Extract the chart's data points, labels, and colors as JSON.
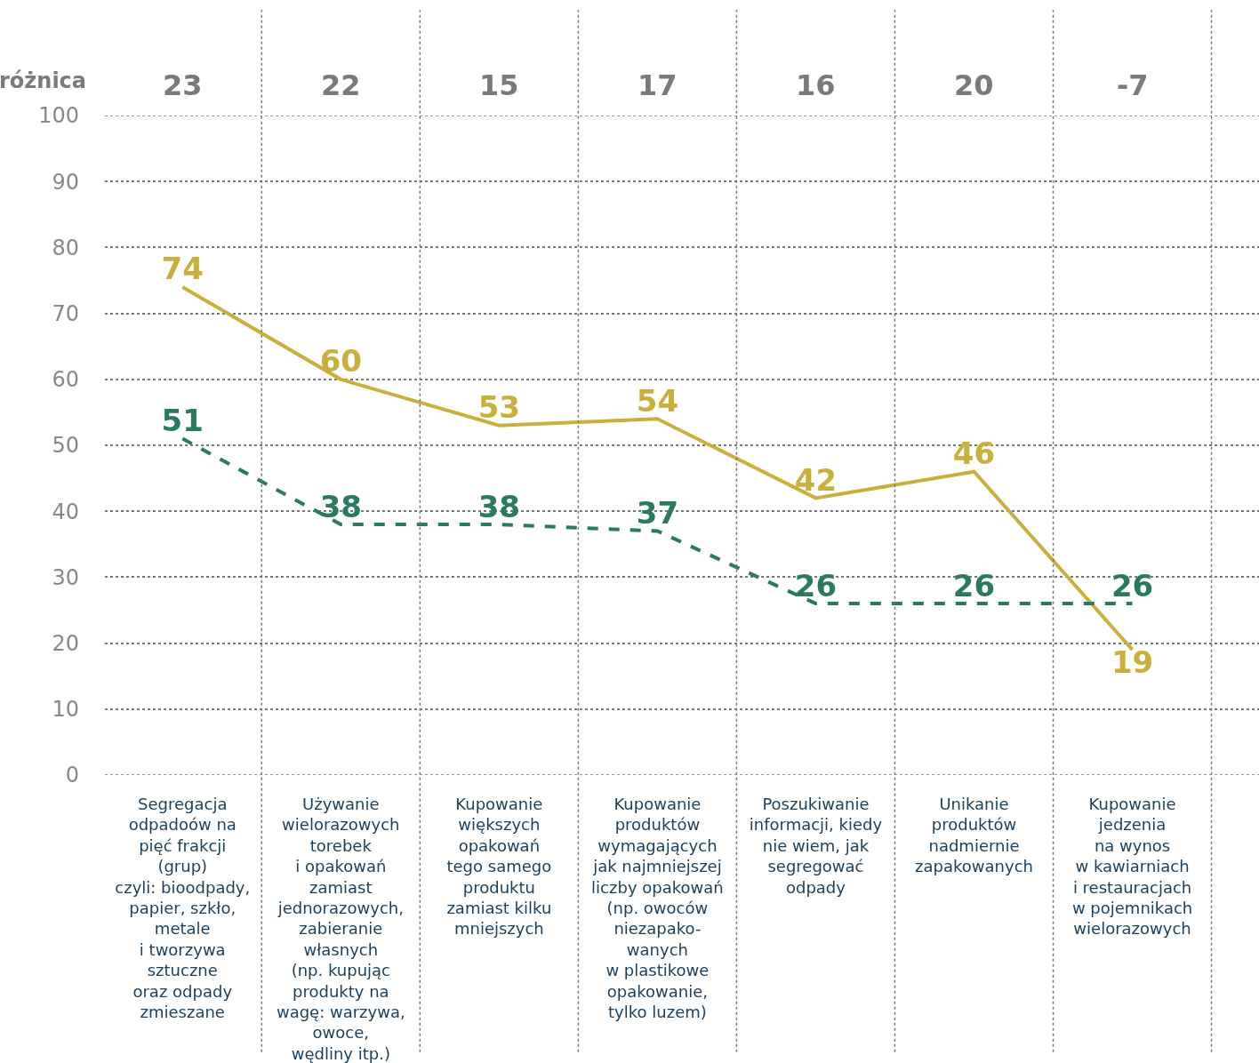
{
  "chart_data": {
    "type": "line",
    "categories": [
      "Segregacja\nodpadoów na\npięć frakcji\n(grup)\nczyli: bioodpady,\npapier, szkło,\nmetale\ni tworzywa\nsztuczne\noraz odpady\nzmieszane",
      "Używanie\nwielorazowych\ntorebek\ni opakowań\nzamiast\njednorazowych,\nzabieranie\nwłasnych\n(np. kupując\nprodukty na\nwagę: warzywa,\nowoce,\nwędliny itp.)",
      "Kupowanie\nwiększych\nopakowań\ntego samego\nproduktu\nzamiast kilku\nmniejszych",
      "Kupowanie\nproduktów\nwymagających\njak najmniejszej\nliczby opakowań\n(np. owoców\nniezapako-\nwanych\nw plastikowe\nopakowanie,\ntylko luzem)",
      "Poszukiwanie\ninformacji, kiedy\nnie wiem, jak\nsegregować\nodpady",
      "Unikanie\nproduktów\nnadmiernie\nzapakowanych",
      "Kupowanie\njedzenia\nna wynos\nw kawiarniach\ni restauracjach\nw pojemnikach\nwielorazowych"
    ],
    "series": [
      {
        "color": "#c9b03c",
        "line_style": "solid",
        "values": [
          74,
          60,
          53,
          54,
          42,
          46,
          19
        ]
      },
      {
        "color": "#2a7a63",
        "line_style": "dashed",
        "values": [
          51,
          38,
          38,
          37,
          26,
          26,
          26
        ]
      }
    ],
    "annotations": [
      "różnica",
      "23",
      "22",
      "15",
      "17",
      "16",
      "20",
      "-7"
    ],
    "ylim": [
      0,
      100
    ],
    "yticks": [
      0,
      10,
      20,
      30,
      40,
      50,
      60,
      70,
      80,
      90,
      100
    ],
    "grid": "y",
    "data_labels": true
  }
}
